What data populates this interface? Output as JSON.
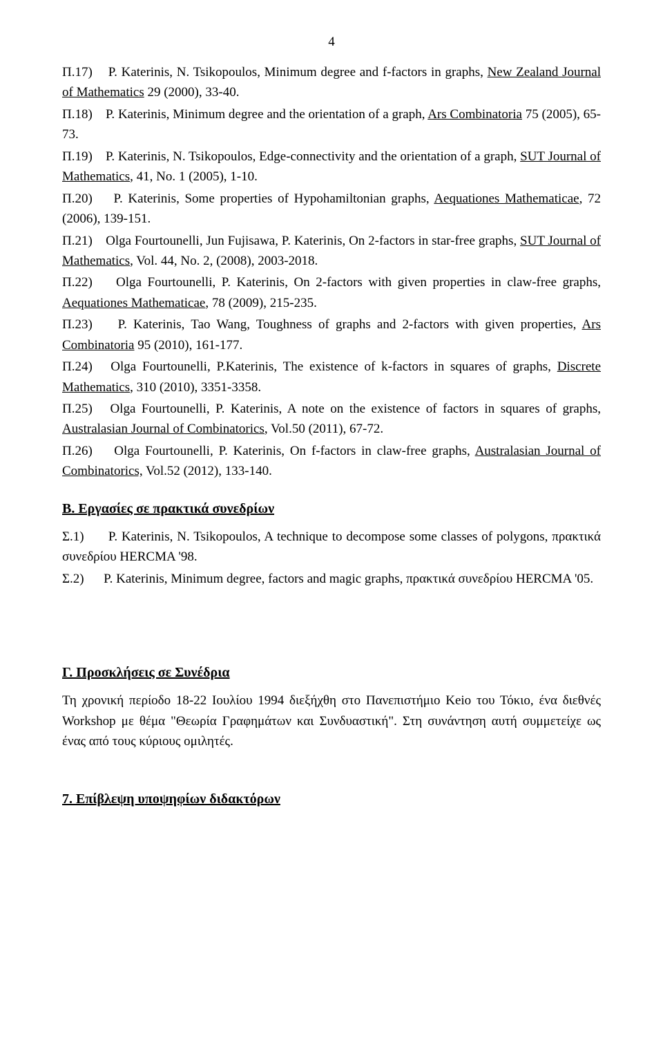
{
  "page_number": "4",
  "entries_a": [
    {
      "tag": "Π.17)",
      "pre": "P. Katerinis, N. Tsikopoulos, Minimum degree and f-factors in graphs, ",
      "journal": "New Zealand Journal of Mathematics",
      "post": " 29 (2000), 33-40."
    },
    {
      "tag": "Π.18)",
      "pre": "P. Katerinis, Minimum degree and the orientation of a graph, ",
      "journal": "Ars Combinatoria",
      "post": " 75 (2005), 65-73."
    },
    {
      "tag": "Π.19)",
      "pre": "P. Katerinis, N. Tsikopoulos, Edge-connectivity and the orientation of a graph, ",
      "journal": "SUT Journal of Mathematics",
      "post": ", 41, No. 1 (2005), 1-10."
    },
    {
      "tag": "Π.20)",
      "pre": "P. Katerinis, Some properties of Hypohamiltonian graphs, ",
      "journal": "Aequationes Mathematicae",
      "post": ", 72 (2006), 139-151."
    },
    {
      "tag": "Π.21)",
      "pre": "Olga Fourtounelli, Jun Fujisawa, P. Katerinis, On 2-factors in star-free graphs, ",
      "journal": "SUT Journal of Mathematics",
      "post": ", Vol. 44, No. 2, (2008), 2003-2018."
    },
    {
      "tag": "Π.22)",
      "pre": "Olga Fourtounelli, P. Katerinis, On 2-factors with given properties in claw-free graphs, ",
      "journal": "Aequationes Mathematicae",
      "post": ", 78 (2009), 215-235."
    },
    {
      "tag": "Π.23)",
      "pre": "P. Katerinis, Tao Wang, Toughness of graphs and 2-factors with given properties, ",
      "journal": "Ars Combinatoria",
      "post": " 95 (2010), 161-177."
    },
    {
      "tag": "Π.24)",
      "pre": "Olga Fourtounelli, P.Katerinis, The existence of k-factors in squares of graphs, ",
      "journal": "Discrete Mathematics",
      "post": ", 310 (2010), 3351-3358."
    },
    {
      "tag": "Π.25)",
      "pre": "Olga Fourtounelli, P. Katerinis,  A note on the existence of factors in squares of graphs, ",
      "journal": "Australasian Journal of Combinatorics",
      "post": ", Vol.50 (2011), 67-72."
    },
    {
      "tag": "Π.26)",
      "pre": "Olga Fourtounelli, P. Katerinis, On f-factors in claw-free graphs, ",
      "journal": "Australasian Journal of Combinatorics,",
      "post": " Vol.52 (2012), 133-140."
    }
  ],
  "section_b_heading": "B. Εργασίες σε πρακτικά συνεδρίων",
  "entries_b": [
    {
      "tag": "Σ.1)",
      "text": "P. Katerinis, N. Tsikopoulos, A technique to decompose some classes of polygons, πρακτικά συνεδρίου HERCMA '98."
    },
    {
      "tag": "Σ.2)",
      "text": "P. Katerinis, Minimum degree, factors and magic graphs, πρακτικά συνεδρίου HERCMA '05."
    }
  ],
  "section_c_heading": "Γ.  Προσκλήσεις σε Συνέδρια",
  "section_c_body": "Τη χρονική περίοδο 18-22 Ιουλίου 1994 διεξήχθη στο Πανεπιστήμιο  Keio του Τόκιο, ένα διεθνές Workshop με θέμα \"Θεωρία Γραφημάτων και Συνδυαστική\". Στη συνάντηση αυτή συμμετείχε ως ένας από τους κύριους ομιλητές.",
  "section_7_heading": "7. Επίβλεψη υποψηφίων διδακτόρων"
}
